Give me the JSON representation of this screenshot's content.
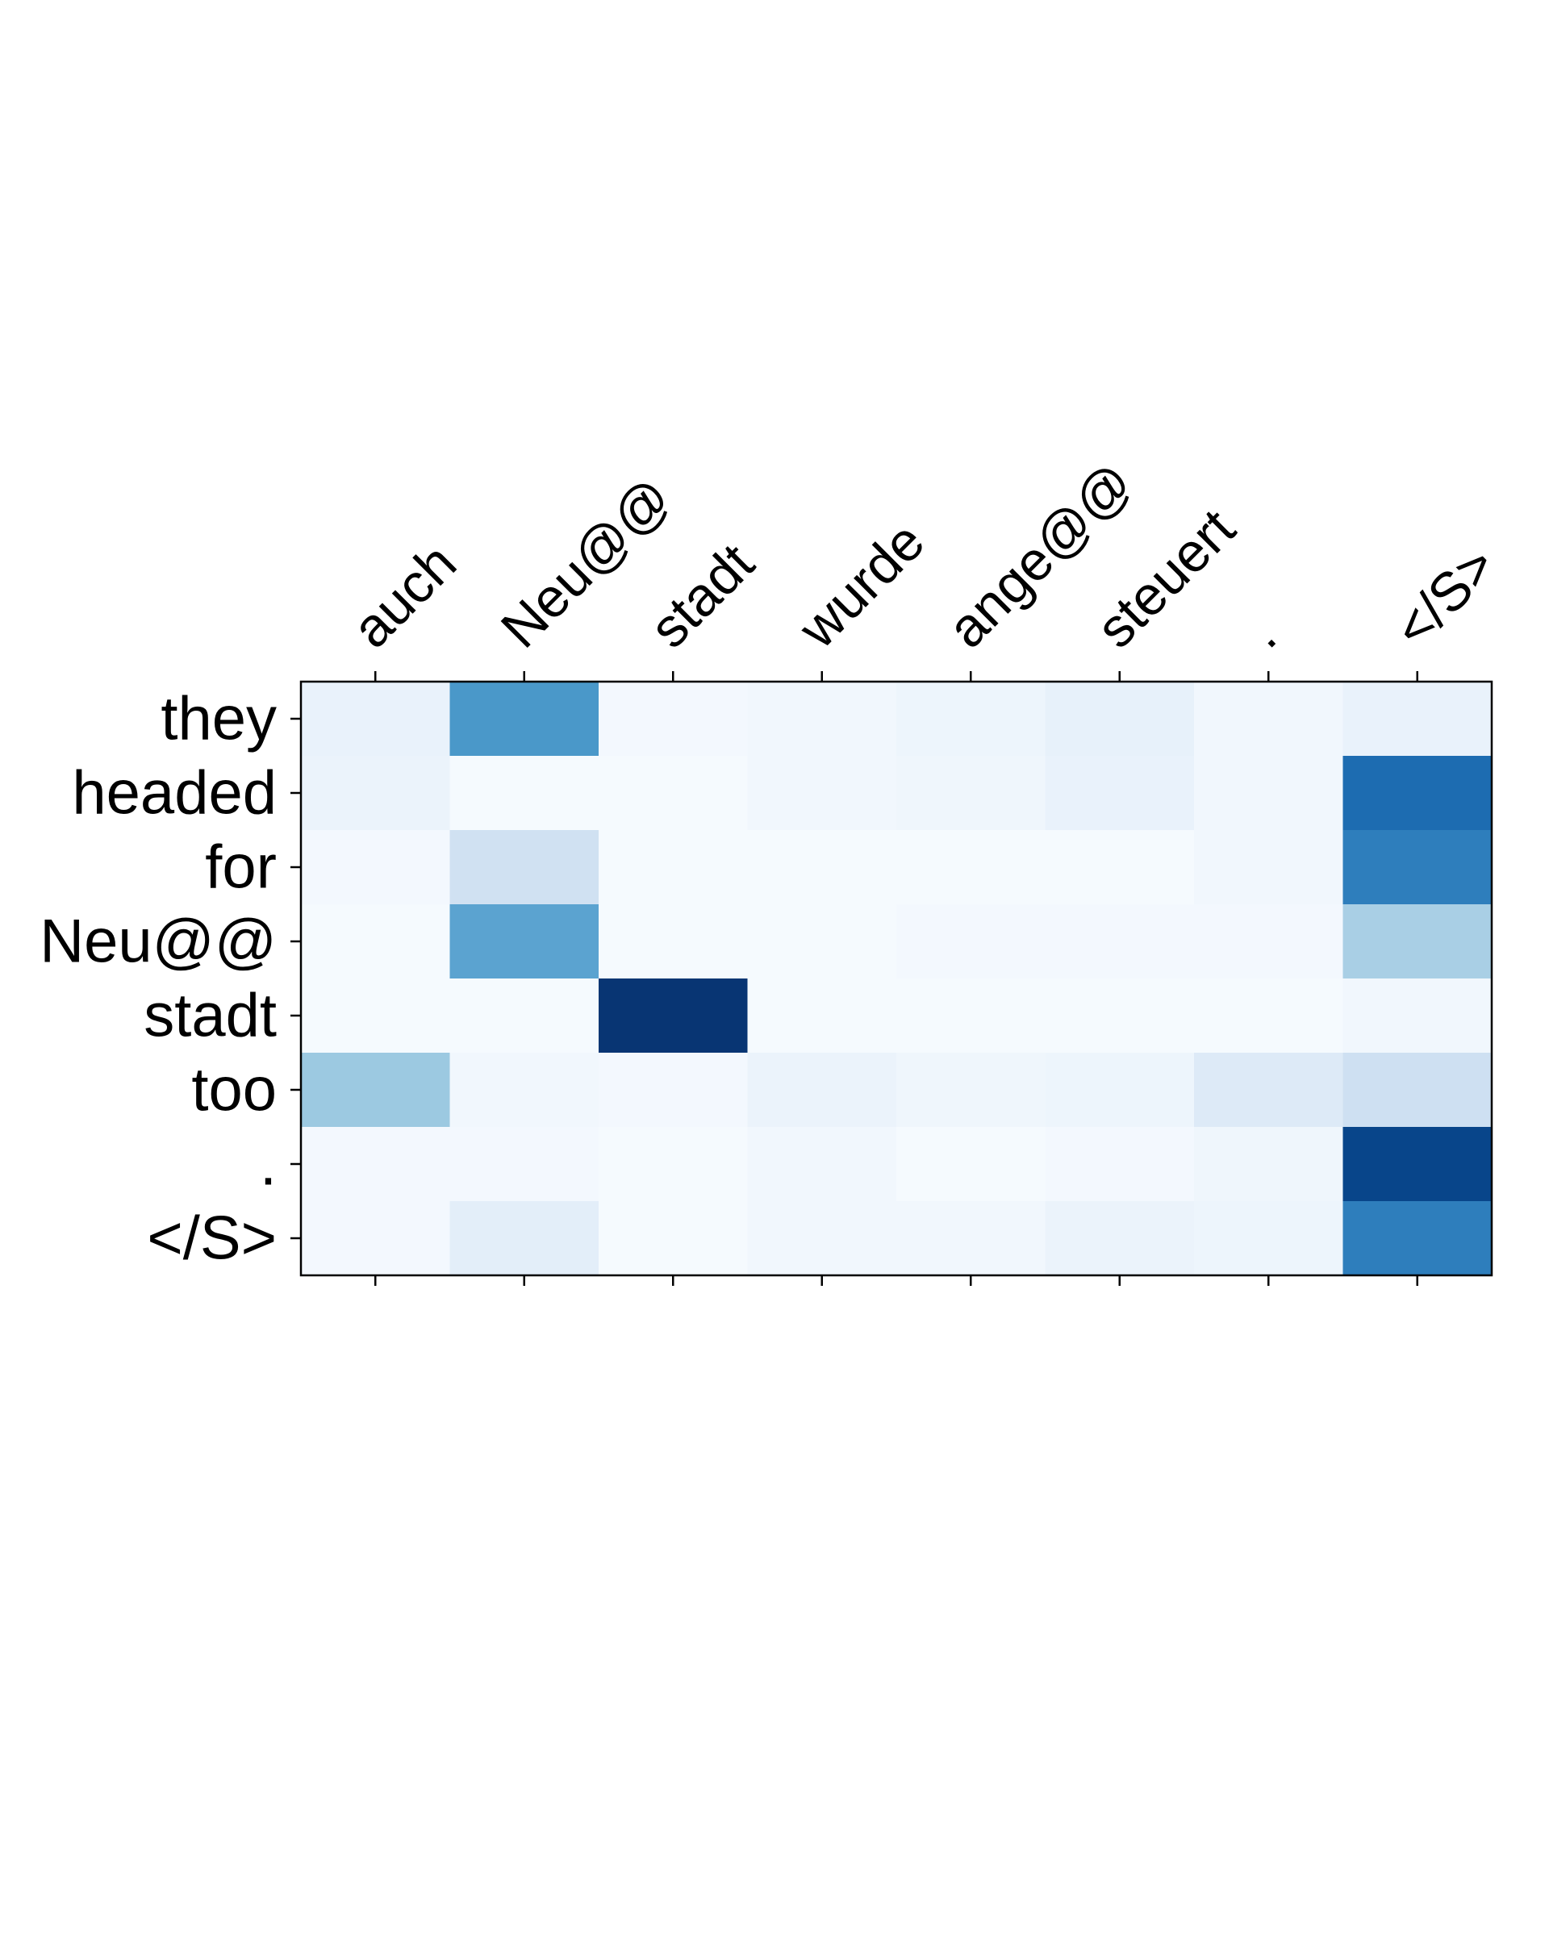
{
  "chart_data": {
    "type": "heatmap",
    "title": "",
    "xlabel": "",
    "ylabel": "",
    "x_labels": [
      "auch",
      "Neu@@",
      "stadt",
      "wurde",
      "ange@@",
      "steuert",
      ".",
      "</S>"
    ],
    "y_labels": [
      "they",
      "headed",
      "for",
      "Neu@@",
      "stadt",
      "too",
      ".",
      "</S>"
    ],
    "colormap": "Blues",
    "value_range": [
      0,
      1
    ],
    "values": [
      [
        0.07,
        0.6,
        0.02,
        0.03,
        0.05,
        0.08,
        0.03,
        0.07
      ],
      [
        0.06,
        0.01,
        0.01,
        0.03,
        0.04,
        0.07,
        0.03,
        0.77
      ],
      [
        0.02,
        0.2,
        0.01,
        0.01,
        0.01,
        0.01,
        0.03,
        0.7
      ],
      [
        0.01,
        0.55,
        0.01,
        0.01,
        0.02,
        0.02,
        0.02,
        0.34
      ],
      [
        0.01,
        0.01,
        0.98,
        0.01,
        0.01,
        0.01,
        0.01,
        0.03
      ],
      [
        0.38,
        0.03,
        0.02,
        0.06,
        0.04,
        0.05,
        0.13,
        0.21
      ],
      [
        0.02,
        0.02,
        0.01,
        0.03,
        0.01,
        0.02,
        0.04,
        0.92
      ],
      [
        0.02,
        0.1,
        0.01,
        0.03,
        0.03,
        0.06,
        0.05,
        0.7
      ]
    ],
    "grid": false,
    "x_tick_labels_position": "top",
    "x_tick_rotation_deg": 45
  }
}
